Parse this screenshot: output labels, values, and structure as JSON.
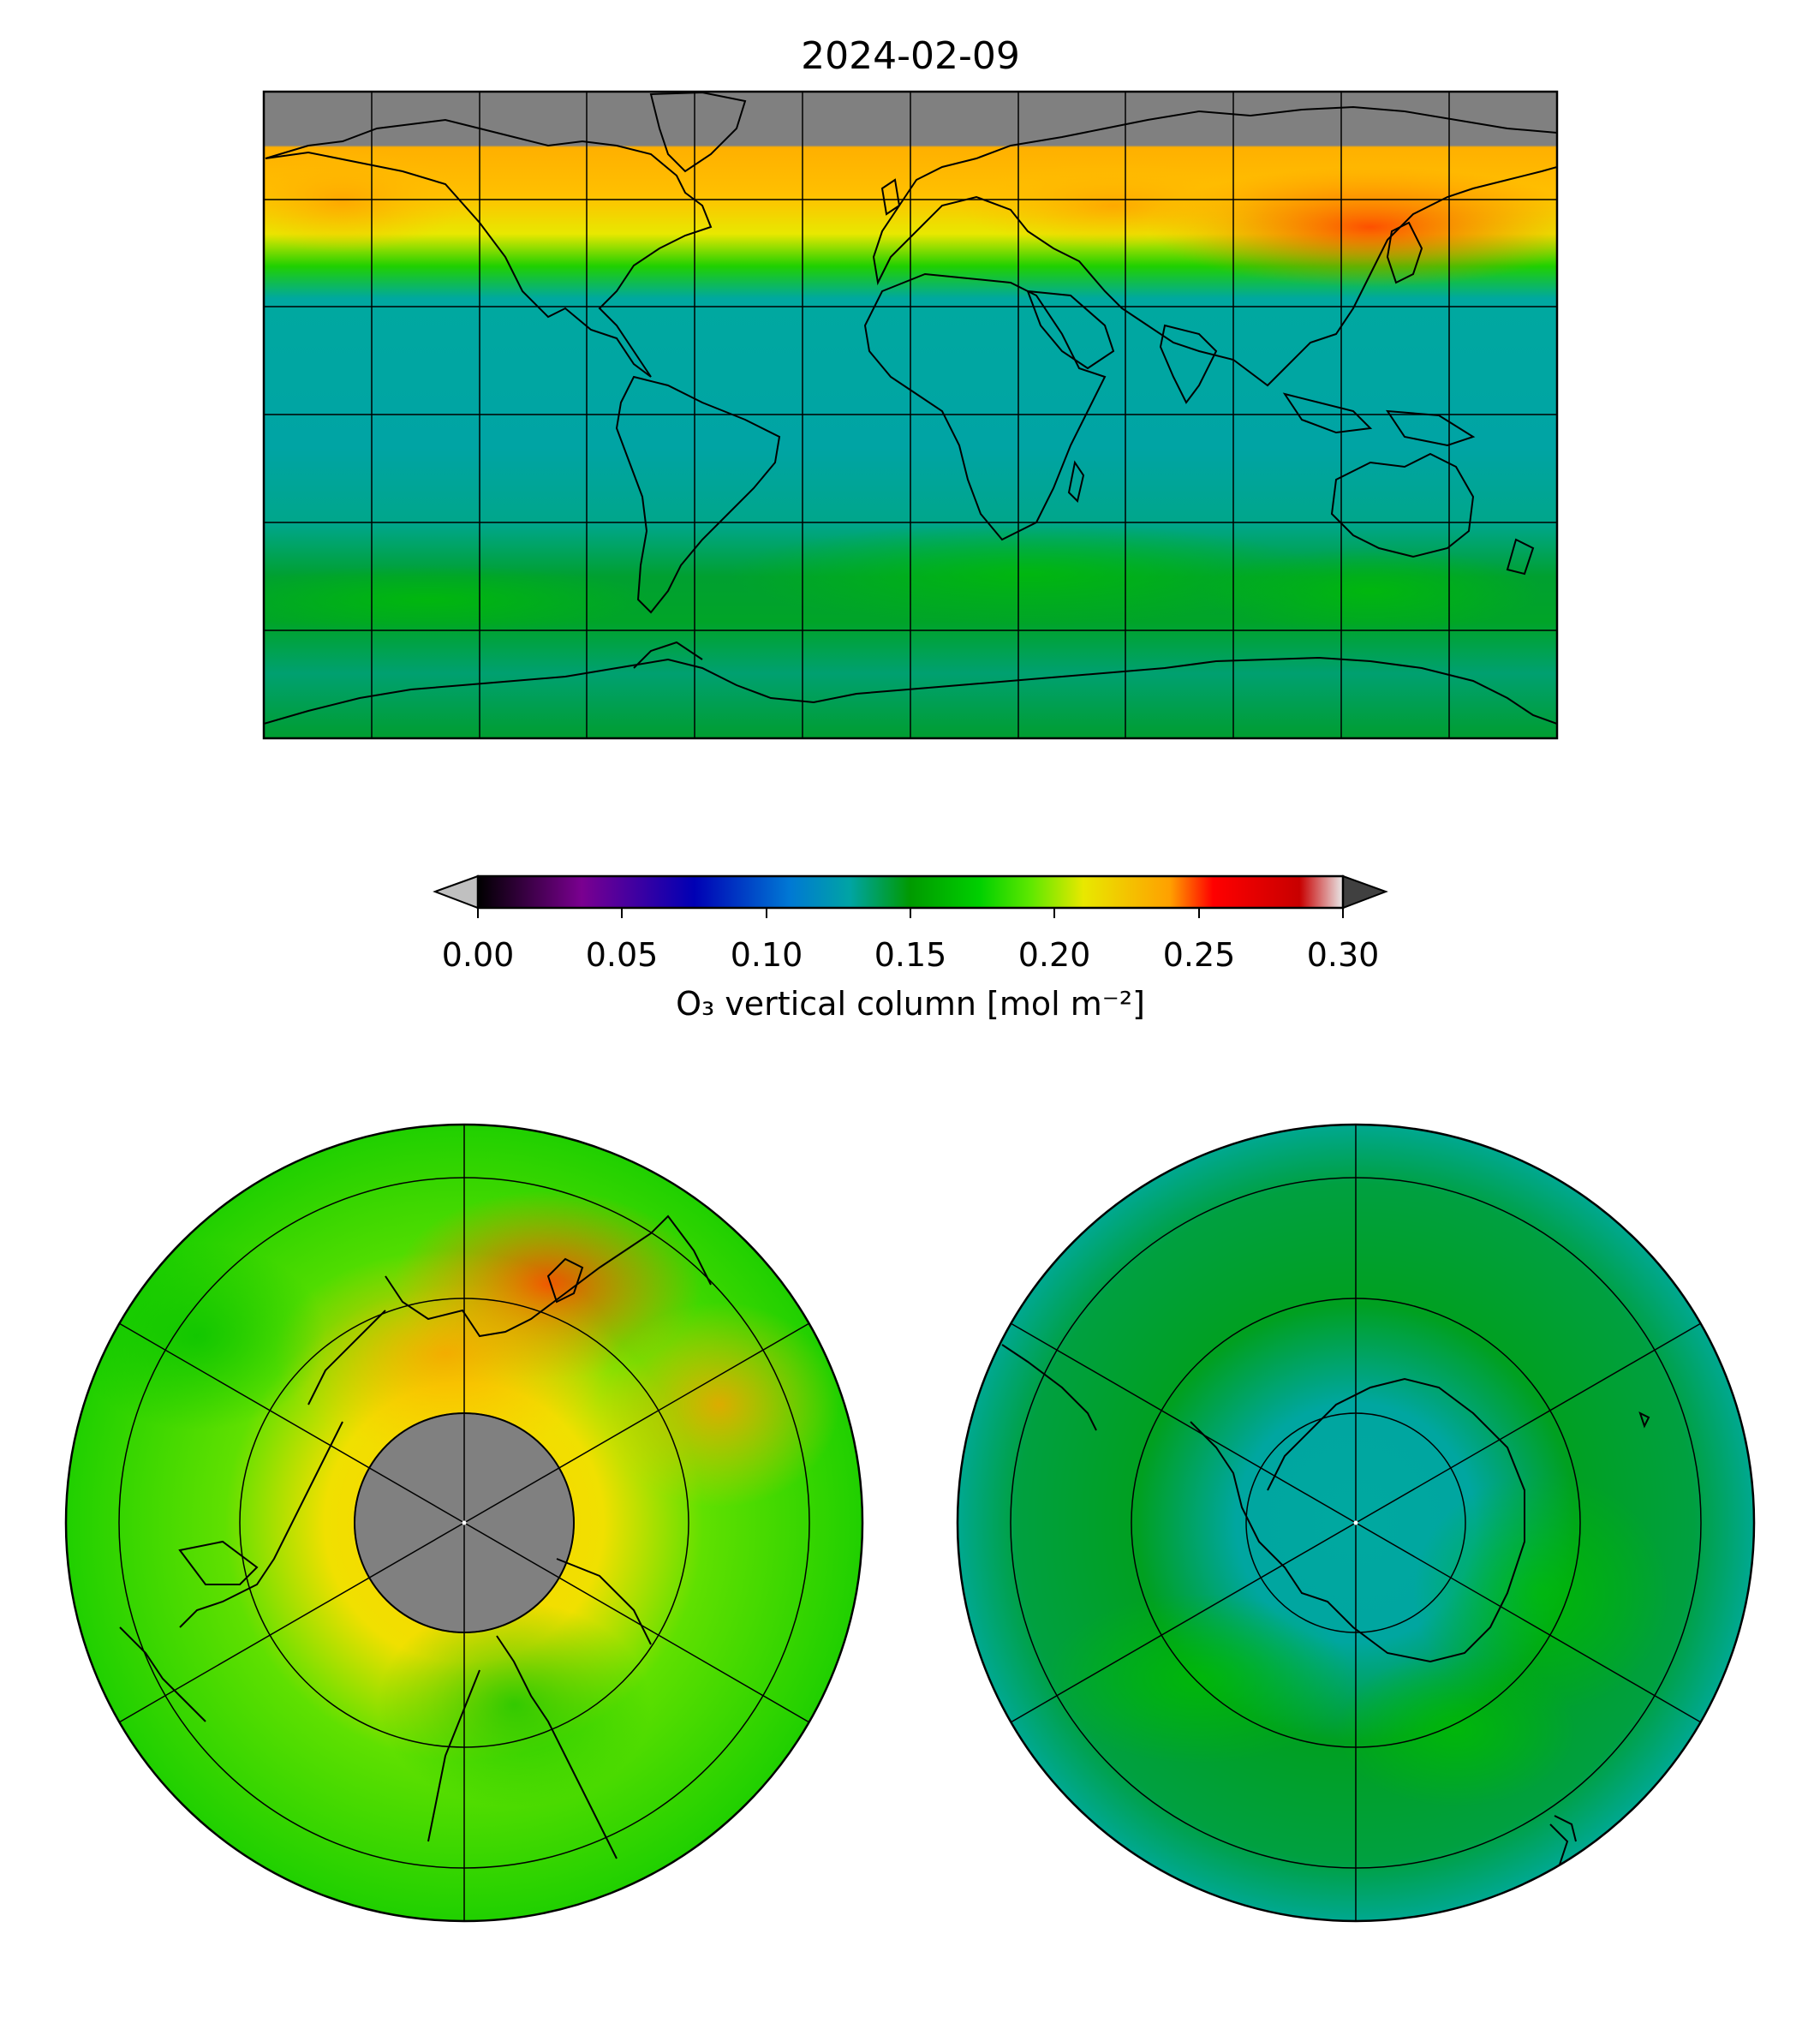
{
  "title": "2024-02-09",
  "colorbar": {
    "label": "O₃ vertical column [mol m⁻²]",
    "ticks": [
      "0.00",
      "0.05",
      "0.10",
      "0.15",
      "0.20",
      "0.25",
      "0.30"
    ],
    "range": [
      0.0,
      0.3
    ],
    "extend": "both",
    "under_color": "#c0c0c0",
    "over_color": "#404040",
    "colormap": [
      "#000000",
      "#7a0090",
      "#0000b4",
      "#0078d4",
      "#00a4a4",
      "#009a00",
      "#00d000",
      "#60e800",
      "#e8e800",
      "#ffa000",
      "#ff0000",
      "#c80000",
      "#e8e8e8"
    ]
  },
  "maps": [
    {
      "name": "global",
      "projection": "plate-carree",
      "missing_color": "#808080"
    },
    {
      "name": "north-polar",
      "projection": "north-polar-stereographic",
      "missing_color": "#808080"
    },
    {
      "name": "south-polar",
      "projection": "south-polar-stereographic"
    }
  ]
}
